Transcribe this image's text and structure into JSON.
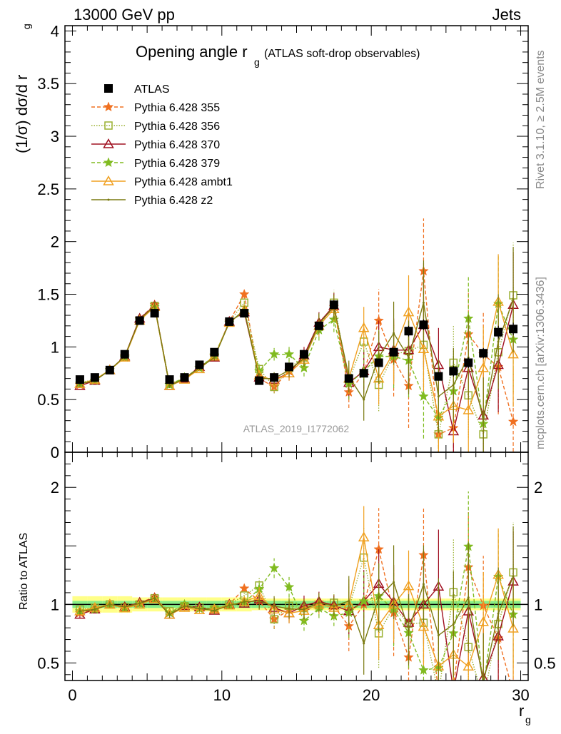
{
  "header": {
    "left": "13000 GeV pp",
    "right": "Jets"
  },
  "side_labels": {
    "top": "Rivet 3.1.10, ≥ 2.5M events",
    "bottom": "mcplots.cern.ch [arXiv:1306.3436]"
  },
  "watermark": "ATLAS_2019_I1772062",
  "chart_data": {
    "type": "scatter",
    "title": "Opening angle r",
    "title_subscript": "g",
    "title_suffix": "(ATLAS soft-drop observables)",
    "xlabel": "r",
    "xlabel_subscript": "g",
    "ylabel": "(1/σ) dσ/d r",
    "ylabel_subscript": "g",
    "ratio_ylabel": "Ratio to ATLAS",
    "xlim": [
      -0.5,
      30.5
    ],
    "ylim": [
      0,
      4.05
    ],
    "ratio_ylim": [
      0.35,
      2.3
    ],
    "x_ticks": [
      0,
      10,
      20,
      30
    ],
    "y_ticks": [
      0,
      0.5,
      1,
      1.5,
      2,
      2.5,
      3,
      3.5,
      4
    ],
    "y_tick_labels": [
      "0",
      "0.5",
      "1",
      "1.5",
      "2",
      "2.5",
      "3",
      "3.5",
      "4"
    ],
    "ratio_ticks": [
      0.5,
      1,
      2
    ],
    "legend_position": "top-left",
    "x": [
      0.5,
      1.5,
      2.5,
      3.5,
      4.5,
      5.5,
      6.5,
      7.5,
      8.5,
      9.5,
      10.5,
      11.5,
      12.5,
      13.5,
      14.5,
      15.5,
      16.5,
      17.5,
      18.5,
      19.5,
      20.5,
      21.5,
      22.5,
      23.5,
      24.5,
      25.5,
      26.5,
      27.5,
      28.5,
      29.5
    ],
    "data": {
      "name": "ATLAS",
      "values": [
        0.69,
        0.71,
        0.78,
        0.93,
        1.25,
        1.32,
        0.69,
        0.71,
        0.83,
        0.95,
        1.24,
        1.32,
        0.68,
        0.71,
        0.81,
        0.93,
        1.2,
        1.4,
        0.7,
        0.75,
        0.85,
        0.95,
        1.15,
        1.21,
        0.72,
        0.77,
        0.85,
        0.94,
        1.14,
        1.17
      ],
      "errors": [
        0.02,
        0.02,
        0.02,
        0.03,
        0.03,
        0.03,
        0.02,
        0.02,
        0.02,
        0.03,
        0.03,
        0.03,
        0.02,
        0.02,
        0.03,
        0.03,
        0.03,
        0.04,
        0.03,
        0.03,
        0.04,
        0.04,
        0.05,
        0.05,
        0.04,
        0.05,
        0.05,
        0.05,
        0.06,
        0.06
      ]
    },
    "ratio_band": {
      "inner": [
        0.03,
        0.03,
        0.03,
        0.03,
        0.03,
        0.03,
        0.03,
        0.03,
        0.03,
        0.03,
        0.03,
        0.03,
        0.03,
        0.03,
        0.03,
        0.03,
        0.03,
        0.03,
        0.03,
        0.03,
        0.03,
        0.03,
        0.03,
        0.03,
        0.03,
        0.03,
        0.03,
        0.03,
        0.03,
        0.03
      ],
      "outer": [
        0.07,
        0.07,
        0.07,
        0.07,
        0.06,
        0.06,
        0.06,
        0.06,
        0.06,
        0.06,
        0.06,
        0.06,
        0.05,
        0.05,
        0.05,
        0.05,
        0.05,
        0.05,
        0.05,
        0.05,
        0.05,
        0.05,
        0.05,
        0.05,
        0.05,
        0.05,
        0.05,
        0.05,
        0.05,
        0.05
      ]
    },
    "series": [
      {
        "name": "Pythia 6.428 355",
        "color": "#f07020",
        "marker": "star",
        "dash": "5,3",
        "values": [
          0.64,
          0.68,
          0.78,
          0.91,
          1.27,
          1.4,
          0.64,
          0.7,
          0.8,
          0.91,
          1.24,
          1.5,
          0.7,
          0.62,
          0.77,
          0.9,
          1.22,
          1.38,
          0.57,
          0.75,
          1.25,
          0.88,
          0.63,
          1.72,
          0.17,
          0.23,
          1.12,
          0.93,
          0.81,
          0.29
        ],
        "errors": [
          0.02,
          0.02,
          0.02,
          0.03,
          0.03,
          0.04,
          0.02,
          0.02,
          0.02,
          0.03,
          0.03,
          0.04,
          0.05,
          0.06,
          0.07,
          0.08,
          0.1,
          0.12,
          0.15,
          0.2,
          0.3,
          0.35,
          0.4,
          0.5,
          0.4,
          0.35,
          0.4,
          0.4,
          0.45,
          0.5
        ]
      },
      {
        "name": "Pythia 6.428 356",
        "color": "#9ab030",
        "marker": "square",
        "dash": "1.5,2",
        "values": [
          0.66,
          0.69,
          0.78,
          0.91,
          1.25,
          1.39,
          0.65,
          0.7,
          0.81,
          0.91,
          1.24,
          1.42,
          0.79,
          0.62,
          0.8,
          0.9,
          1.19,
          1.42,
          0.68,
          1.05,
          0.64,
          0.93,
          0.96,
          1.02,
          0.17,
          0.85,
          0.54,
          0.17,
          0.95,
          1.49
        ],
        "errors": [
          0.02,
          0.02,
          0.02,
          0.03,
          0.03,
          0.04,
          0.02,
          0.02,
          0.02,
          0.03,
          0.03,
          0.04,
          0.05,
          0.06,
          0.07,
          0.08,
          0.1,
          0.12,
          0.15,
          0.2,
          0.25,
          0.3,
          0.35,
          0.4,
          0.35,
          0.35,
          0.4,
          0.4,
          0.45,
          0.5
        ]
      },
      {
        "name": "Pythia 6.428 370",
        "color": "#a01020",
        "marker": "triangle",
        "dash": "",
        "values": [
          0.63,
          0.68,
          0.78,
          0.91,
          1.27,
          1.39,
          0.63,
          0.7,
          0.81,
          0.9,
          1.24,
          1.33,
          0.71,
          0.69,
          0.75,
          0.92,
          1.23,
          1.39,
          0.66,
          0.77,
          1.0,
          0.97,
          0.97,
          1.21,
          0.83,
          0.2,
          0.8,
          0.35,
          0.83,
          1.4
        ],
        "errors": [
          0.02,
          0.02,
          0.02,
          0.03,
          0.03,
          0.04,
          0.02,
          0.02,
          0.02,
          0.03,
          0.03,
          0.04,
          0.05,
          0.06,
          0.07,
          0.08,
          0.1,
          0.12,
          0.15,
          0.2,
          0.25,
          0.3,
          0.35,
          0.4,
          0.35,
          0.35,
          0.4,
          0.4,
          0.45,
          0.5
        ]
      },
      {
        "name": "Pythia 6.428 379",
        "color": "#80bb20",
        "marker": "star",
        "dash": "5,3",
        "values": [
          0.65,
          0.68,
          0.78,
          0.9,
          1.26,
          1.38,
          0.64,
          0.71,
          0.8,
          0.92,
          1.23,
          1.34,
          0.77,
          0.93,
          0.93,
          0.8,
          1.16,
          1.26,
          0.65,
          0.77,
          0.91,
          0.91,
          0.87,
          0.53,
          0.33,
          0.58,
          1.27,
          0.27,
          1.41,
          1.07
        ],
        "errors": [
          0.02,
          0.02,
          0.02,
          0.03,
          0.03,
          0.04,
          0.02,
          0.02,
          0.02,
          0.03,
          0.03,
          0.04,
          0.05,
          0.06,
          0.07,
          0.08,
          0.1,
          0.12,
          0.15,
          0.2,
          0.25,
          0.3,
          0.35,
          0.4,
          0.35,
          0.35,
          0.4,
          0.4,
          0.45,
          0.5
        ]
      },
      {
        "name": "Pythia 6.428 ambt1",
        "color": "#f0a020",
        "marker": "triangle",
        "dash": "",
        "values": [
          0.65,
          0.69,
          0.78,
          0.9,
          1.25,
          1.38,
          0.63,
          0.69,
          0.79,
          0.91,
          1.23,
          1.35,
          0.73,
          0.68,
          0.75,
          0.88,
          1.2,
          1.36,
          0.7,
          1.18,
          0.7,
          0.95,
          1.33,
          0.98,
          0.34,
          0.44,
          0.4,
          0.8,
          1.43,
          0.93
        ],
        "errors": [
          0.02,
          0.02,
          0.02,
          0.03,
          0.03,
          0.04,
          0.02,
          0.02,
          0.02,
          0.03,
          0.03,
          0.04,
          0.05,
          0.06,
          0.07,
          0.08,
          0.1,
          0.12,
          0.15,
          0.2,
          0.25,
          0.3,
          0.35,
          0.4,
          0.35,
          0.35,
          0.4,
          0.4,
          0.45,
          0.5
        ]
      },
      {
        "name": "Pythia 6.428 z2",
        "color": "#7a7a10",
        "marker": "dot",
        "dash": "",
        "values": [
          0.65,
          0.68,
          0.78,
          0.91,
          1.26,
          1.39,
          0.63,
          0.7,
          0.8,
          0.9,
          1.23,
          1.35,
          0.7,
          0.7,
          0.78,
          0.89,
          1.22,
          1.38,
          0.72,
          0.5,
          0.9,
          1.13,
          0.9,
          1.42,
          0.53,
          0.64,
          0.9,
          0.31,
          1.05,
          1.45
        ],
        "errors": [
          0.02,
          0.02,
          0.02,
          0.03,
          0.03,
          0.04,
          0.02,
          0.02,
          0.02,
          0.03,
          0.03,
          0.04,
          0.05,
          0.06,
          0.07,
          0.08,
          0.1,
          0.12,
          0.15,
          0.2,
          0.25,
          0.3,
          0.35,
          0.4,
          0.35,
          0.35,
          0.4,
          0.4,
          0.45,
          0.5
        ]
      }
    ]
  }
}
